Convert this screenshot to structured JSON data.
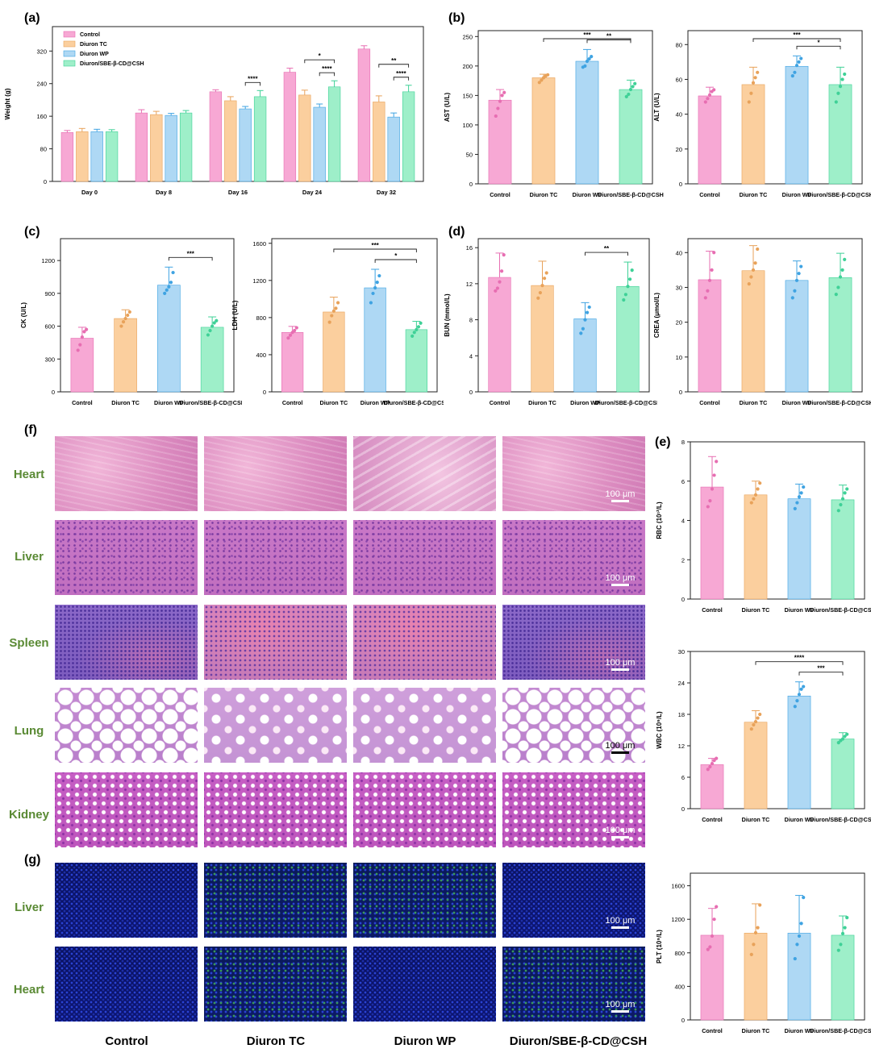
{
  "panels": {
    "a": "(a)",
    "b": "(b)",
    "c": "(c)",
    "d": "(d)",
    "e": "(e)",
    "f": "(f)",
    "g": "(g)"
  },
  "colors": {
    "control": "#f7a8d4",
    "tc": "#fbcf9e",
    "wp": "#aed8f4",
    "sbe": "#9eefc9",
    "control_dot": "#e76eb2",
    "tc_dot": "#e8a25a",
    "wp_dot": "#3fa3e2",
    "sbe_dot": "#3fd197"
  },
  "histology": {
    "rows": [
      "Heart",
      "Liver",
      "Spleen",
      "Lung",
      "Kidney"
    ],
    "if_rows": [
      "Liver",
      "Heart"
    ],
    "columns": [
      "Control",
      "Diuron TC",
      "Diuron WP",
      "Diuron/SBE-β-CD@CSH"
    ],
    "scale": "100 μm"
  },
  "chart_data": [
    {
      "id": "weight",
      "type": "bar",
      "categories": [
        "Day 0",
        "Day 8",
        "Day 16",
        "Day 24",
        "Day 32"
      ],
      "series": [
        {
          "name": "Control",
          "values": [
            120,
            168,
            220,
            268,
            325
          ],
          "err": [
            5,
            8,
            5,
            10,
            8
          ]
        },
        {
          "name": "Diuron TC",
          "values": [
            122,
            164,
            198,
            212,
            195
          ],
          "err": [
            8,
            8,
            10,
            12,
            15
          ]
        },
        {
          "name": "Diuron WP",
          "values": [
            122,
            162,
            178,
            182,
            158
          ],
          "err": [
            6,
            5,
            6,
            8,
            10
          ]
        },
        {
          "name": "Diuron/SBE-β-CD@CSH",
          "values": [
            122,
            168,
            208,
            232,
            220
          ],
          "err": [
            5,
            6,
            15,
            15,
            16
          ]
        }
      ],
      "ylabel": "Weight (g)",
      "ylim": [
        0,
        380
      ],
      "yticks": [
        0,
        80,
        160,
        240,
        320
      ],
      "legend": "top-left",
      "sig": [
        {
          "cat": 2,
          "from": 2,
          "to": 3,
          "label": "****"
        },
        {
          "cat": 3,
          "from": 1,
          "to": 3,
          "label": "*"
        },
        {
          "cat": 3,
          "from": 2,
          "to": 3,
          "label": "****"
        },
        {
          "cat": 4,
          "from": 1,
          "to": 3,
          "label": "**"
        },
        {
          "cat": 4,
          "from": 2,
          "to": 3,
          "label": "****"
        }
      ]
    },
    {
      "id": "ast",
      "type": "bar",
      "categories": [
        "Control",
        "Diuron TC",
        "Diuron WP",
        "Diuron/SBE-β-CD@CSH"
      ],
      "values": [
        142,
        180,
        208,
        160
      ],
      "err": [
        18,
        6,
        20,
        16
      ],
      "points": [
        [
          115,
          128,
          140,
          150,
          155
        ],
        [
          172,
          176,
          180,
          183,
          185
        ],
        [
          198,
          200,
          208,
          212,
          216
        ],
        [
          148,
          152,
          160,
          165,
          170
        ]
      ],
      "ylabel": "AST (U/L)",
      "ylim": [
        0,
        260
      ],
      "yticks": [
        0,
        50,
        100,
        150,
        200,
        250
      ],
      "sig": [
        {
          "from": 1,
          "to": 3,
          "label": "***"
        },
        {
          "from": 2,
          "to": 3,
          "label": "**"
        }
      ]
    },
    {
      "id": "alt",
      "type": "bar",
      "categories": [
        "Control",
        "Diuron TC",
        "Diuron WP",
        "Diuron/SBE-β-CD@CSH"
      ],
      "values": [
        50.5,
        57,
        67.5,
        57
      ],
      "err": [
        5,
        10,
        6,
        10
      ],
      "points": [
        [
          47,
          49,
          51,
          53,
          54
        ],
        [
          47,
          52,
          58,
          61,
          64
        ],
        [
          62,
          64,
          68,
          70,
          72
        ],
        [
          47,
          52,
          56,
          60,
          63
        ]
      ],
      "ylabel": "ALT (U/L)",
      "ylim": [
        0,
        88
      ],
      "yticks": [
        0,
        20,
        40,
        60,
        80
      ],
      "sig": [
        {
          "from": 1,
          "to": 3,
          "label": "***"
        },
        {
          "from": 2,
          "to": 3,
          "label": "*"
        }
      ]
    },
    {
      "id": "ck",
      "type": "bar",
      "categories": [
        "Control",
        "Diuron TC",
        "Diuron WP",
        "Diuron/SBE-β-CD@CSH"
      ],
      "values": [
        490,
        670,
        975,
        590
      ],
      "err": [
        100,
        80,
        165,
        95
      ],
      "points": [
        [
          380,
          430,
          500,
          550,
          570
        ],
        [
          600,
          640,
          670,
          700,
          730
        ],
        [
          900,
          930,
          960,
          1000,
          1090
        ],
        [
          520,
          560,
          600,
          630,
          650
        ]
      ],
      "ylabel": "CK (U/L)",
      "ylim": [
        0,
        1400
      ],
      "yticks": [
        0,
        300,
        600,
        900,
        1200
      ],
      "sig": [
        {
          "from": 2,
          "to": 3,
          "label": "***"
        }
      ]
    },
    {
      "id": "ldh",
      "type": "bar",
      "categories": [
        "Control",
        "Diuron TC",
        "Diuron WP",
        "Diuron/SBE-β-CD@CSH"
      ],
      "values": [
        640,
        860,
        1120,
        670
      ],
      "err": [
        65,
        160,
        200,
        90
      ],
      "points": [
        [
          580,
          610,
          640,
          660,
          690
        ],
        [
          750,
          820,
          870,
          900,
          960
        ],
        [
          960,
          1060,
          1120,
          1180,
          1250
        ],
        [
          600,
          640,
          670,
          700,
          740
        ]
      ],
      "ylabel": "LDH (U/L)",
      "ylim": [
        0,
        1650
      ],
      "yticks": [
        0,
        400,
        800,
        1200,
        1600
      ],
      "sig": [
        {
          "from": 1,
          "to": 3,
          "label": "***"
        },
        {
          "from": 2,
          "to": 3,
          "label": "*"
        }
      ]
    },
    {
      "id": "bun",
      "type": "bar",
      "categories": [
        "Control",
        "Diuron TC",
        "Diuron WP",
        "Diuron/SBE-β-CD@CSH"
      ],
      "values": [
        12.7,
        11.8,
        8.1,
        11.7
      ],
      "err": [
        2.7,
        2.7,
        1.8,
        2.7
      ],
      "points": [
        [
          11.2,
          11.5,
          12.2,
          13.4,
          15.2
        ],
        [
          10.4,
          11.0,
          11.8,
          12.6,
          13.2
        ],
        [
          6.5,
          7.0,
          8.0,
          8.8,
          9.4
        ],
        [
          10.2,
          10.8,
          11.7,
          12.5,
          13.5
        ]
      ],
      "ylabel": "BUN (mmol/L)",
      "ylim": [
        0,
        17
      ],
      "yticks": [
        0,
        4,
        8,
        12,
        16
      ],
      "sig": [
        {
          "from": 2,
          "to": 3,
          "label": "**"
        }
      ]
    },
    {
      "id": "crea",
      "type": "bar",
      "categories": [
        "Control",
        "Diuron TC",
        "Diuron WP",
        "Diuron/SBE-β-CD@CSH"
      ],
      "values": [
        32.2,
        34.8,
        32.0,
        32.8
      ],
      "err": [
        8.2,
        7.2,
        5.6,
        7.0
      ],
      "points": [
        [
          27,
          29,
          32,
          35,
          40
        ],
        [
          31,
          33,
          35,
          37,
          41
        ],
        [
          27,
          29,
          32,
          34,
          36
        ],
        [
          28,
          30,
          33,
          35,
          38
        ]
      ],
      "ylabel": "CREA (μmol/L)",
      "ylim": [
        0,
        44
      ],
      "yticks": [
        0,
        10,
        20,
        30,
        40
      ],
      "sig": []
    },
    {
      "id": "rbc",
      "type": "bar",
      "categories": [
        "Control",
        "Diuron TC",
        "Diuron WP",
        "Diuron/SBE-β-CD@CSH"
      ],
      "values": [
        5.7,
        5.3,
        5.1,
        5.05
      ],
      "err": [
        1.55,
        0.7,
        0.75,
        0.75
      ],
      "points": [
        [
          4.7,
          5.0,
          5.6,
          6.3,
          7.0
        ],
        [
          4.9,
          5.1,
          5.3,
          5.6,
          5.9
        ],
        [
          4.6,
          4.9,
          5.2,
          5.4,
          5.7
        ],
        [
          4.5,
          4.8,
          5.1,
          5.4,
          5.6
        ]
      ],
      "ylabel": "RBC (10¹²/L)",
      "ylim": [
        0,
        8
      ],
      "yticks": [
        0,
        2,
        4,
        6,
        8
      ],
      "sig": []
    },
    {
      "id": "wbc",
      "type": "bar",
      "categories": [
        "Control",
        "Diuron TC",
        "Diuron WP",
        "Diuron/SBE-β-CD@CSH"
      ],
      "values": [
        8.4,
        16.5,
        21.5,
        13.3
      ],
      "err": [
        1.2,
        2.2,
        2.7,
        1.2
      ],
      "points": [
        [
          7.5,
          8.0,
          8.6,
          9.2,
          9.6
        ],
        [
          15.2,
          16.0,
          16.6,
          17.3,
          18.0
        ],
        [
          19.5,
          20.6,
          21.8,
          22.8,
          23.3
        ],
        [
          12.6,
          13.0,
          13.3,
          13.8,
          14.2
        ]
      ],
      "ylabel": "WBC (10⁹/L)",
      "ylim": [
        0,
        30
      ],
      "yticks": [
        0,
        6,
        12,
        18,
        24,
        30
      ],
      "sig": [
        {
          "from": 1,
          "to": 3,
          "label": "****"
        },
        {
          "from": 2,
          "to": 3,
          "label": "***"
        }
      ]
    },
    {
      "id": "plt",
      "type": "bar",
      "categories": [
        "Control",
        "Diuron TC",
        "Diuron WP",
        "Diuron/SBE-β-CD@CSH"
      ],
      "values": [
        1010,
        1035,
        1035,
        1010
      ],
      "err": [
        320,
        350,
        450,
        230
      ],
      "points": [
        [
          840,
          870,
          1000,
          1200,
          1350
        ],
        [
          780,
          900,
          1040,
          1100,
          1370
        ],
        [
          730,
          900,
          1000,
          1150,
          1460
        ],
        [
          830,
          900,
          1030,
          1100,
          1220
        ]
      ],
      "ylabel": "PLT (10⁹/L)",
      "ylim": [
        0,
        1750
      ],
      "yticks": [
        0,
        400,
        800,
        1200,
        1600
      ],
      "sig": []
    }
  ]
}
